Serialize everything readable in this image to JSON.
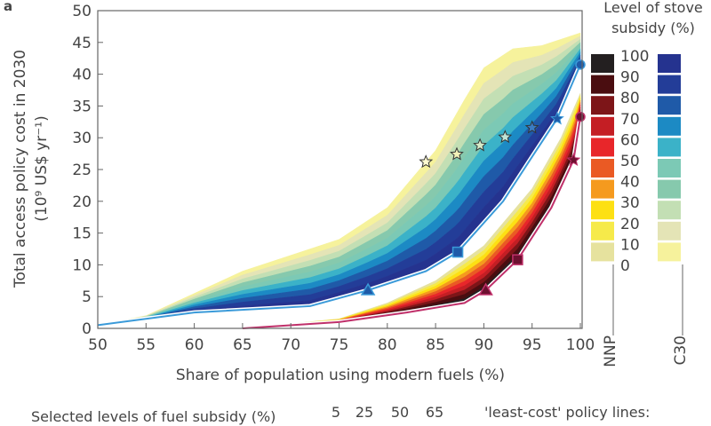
{
  "panel_label": "a",
  "chart_data": {
    "type": "area",
    "xlabel": "Share of population using modern fuels (%)",
    "ylabel_line1": "Total access policy cost in 2030",
    "ylabel_line2": "(10⁹ US$ yr⁻¹)",
    "xlim": [
      50,
      100
    ],
    "ylim": [
      0,
      50
    ],
    "xticks": [
      50,
      55,
      60,
      65,
      70,
      75,
      80,
      85,
      90,
      95,
      100
    ],
    "yticks": [
      0,
      5,
      10,
      15,
      20,
      25,
      30,
      35,
      40,
      45,
      50
    ],
    "legend": {
      "title_line1": "Level of stove",
      "title_line2": "subsidy (%)",
      "levels": [
        "100",
        "90",
        "80",
        "70",
        "60",
        "50",
        "40",
        "30",
        "20",
        "10",
        "0"
      ],
      "nnp_colors": [
        "#231f20",
        "#4a0d10",
        "#7d1518",
        "#c41e24",
        "#e8262a",
        "#ea5a24",
        "#f59a1e",
        "#fde013",
        "#f6ea4a",
        "#e6e29e"
      ],
      "c30_colors": [
        "#25338f",
        "#233d98",
        "#1f5aa8",
        "#1c8ac4",
        "#3bb2c8",
        "#7cc9b5",
        "#86c9ad",
        "#c3dfb4",
        "#e4e4b6",
        "#f6f29c"
      ],
      "nnp_label": "NNP",
      "c30_label": "C30"
    },
    "series": [
      {
        "name": "C30",
        "color": "#3a9ad9",
        "line": [
          [
            50,
            0.5
          ],
          [
            60,
            2.5
          ],
          [
            72,
            3.5
          ],
          [
            78,
            6
          ],
          [
            84,
            9
          ],
          [
            87.3,
            12
          ],
          [
            92,
            20
          ],
          [
            95,
            27
          ],
          [
            97.6,
            33
          ],
          [
            100,
            41.5
          ]
        ],
        "envelope": [
          [
            50,
            0.5
          ],
          [
            55,
            2
          ],
          [
            65,
            9
          ],
          [
            75,
            14
          ],
          [
            80,
            19
          ],
          [
            85,
            28
          ],
          [
            88,
            36
          ],
          [
            90,
            41
          ],
          [
            93,
            44
          ],
          [
            96,
            44.5
          ],
          [
            100,
            46.5
          ]
        ],
        "markers": [
          {
            "x": 78,
            "y": 6,
            "shape": "triangle"
          },
          {
            "x": 87.3,
            "y": 12,
            "shape": "square"
          },
          {
            "x": 97.6,
            "y": 33,
            "shape": "star"
          },
          {
            "x": 100,
            "y": 41.5,
            "shape": "circle"
          }
        ]
      },
      {
        "name": "NNP",
        "color": "#c0306a",
        "line": [
          [
            65,
            0
          ],
          [
            75,
            1
          ],
          [
            82,
            2.5
          ],
          [
            86,
            3.5
          ],
          [
            88,
            4
          ],
          [
            90.2,
            6
          ],
          [
            93.5,
            10.8
          ],
          [
            97,
            19
          ],
          [
            99.3,
            26.5
          ],
          [
            100,
            33.3
          ]
        ],
        "envelope": [
          [
            65,
            0
          ],
          [
            75,
            1.5
          ],
          [
            80,
            4
          ],
          [
            85,
            7.5
          ],
          [
            90,
            13
          ],
          [
            95,
            22
          ],
          [
            98,
            30
          ],
          [
            100,
            37
          ]
        ],
        "markers": [
          {
            "x": 90.2,
            "y": 6,
            "shape": "triangle"
          },
          {
            "x": 93.5,
            "y": 10.8,
            "shape": "square"
          },
          {
            "x": 99.3,
            "y": 26.5,
            "shape": "star"
          },
          {
            "x": 100,
            "y": 33.3,
            "shape": "circle"
          }
        ]
      }
    ],
    "open_stars": [
      [
        84,
        26.2
      ],
      [
        87.2,
        27.4
      ],
      [
        89.6,
        28.8
      ],
      [
        92.2,
        30.1
      ],
      [
        95,
        31.6
      ]
    ],
    "bottom_legend": {
      "label": "Selected levels of fuel subsidy (%)",
      "levels": [
        "5",
        "25",
        "50",
        "65"
      ],
      "policy_lines_label": "'least-cost' policy lines:"
    }
  }
}
